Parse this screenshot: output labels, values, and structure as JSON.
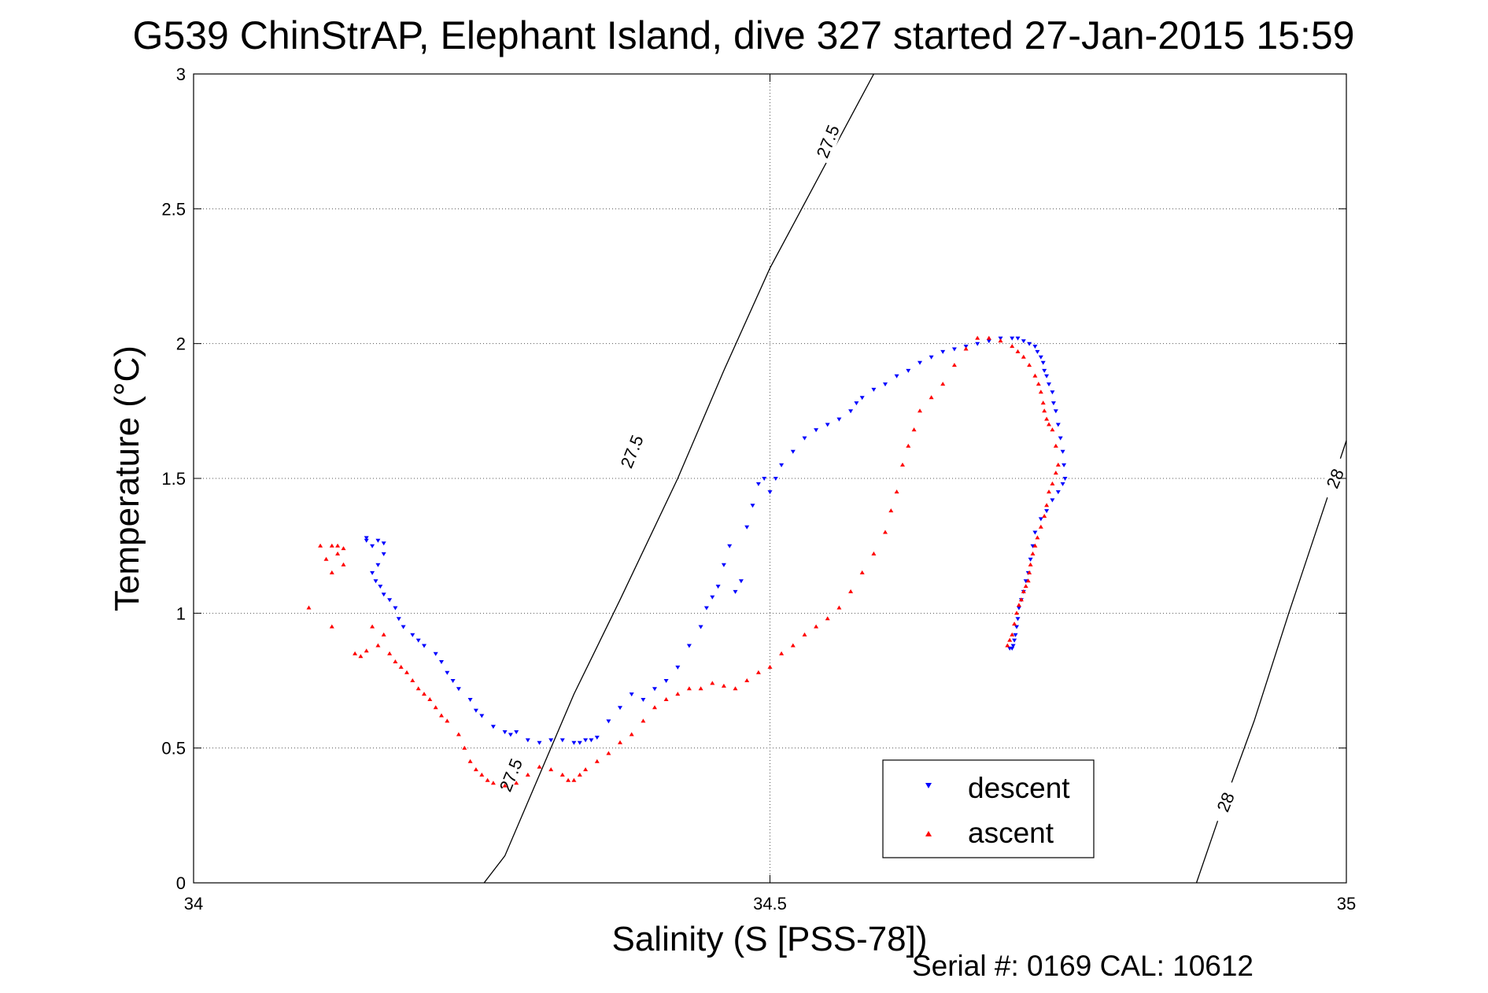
{
  "chart_data": {
    "type": "scatter",
    "title": "G539 ChinStrAP, Elephant Island, dive 327 started 27-Jan-2015 15:59",
    "xlabel": "Salinity (S [PSS-78])",
    "ylabel": "Temperature (°C)",
    "footer": "Serial #: 0169 CAL: 10612",
    "xlim": [
      34,
      35
    ],
    "ylim": [
      0,
      3
    ],
    "xticks": [
      34,
      34.5,
      35
    ],
    "xtick_labels": [
      "34",
      "34.5",
      "35"
    ],
    "yticks": [
      0,
      0.5,
      1,
      1.5,
      2,
      2.5,
      3
    ],
    "ytick_labels": [
      "0",
      "0.5",
      "1",
      "1.5",
      "2",
      "2.5",
      "3"
    ],
    "grid": true,
    "legend_position": "lower-right",
    "isopycnals": [
      {
        "label": "27.5",
        "points": [
          [
            34.252,
            0
          ],
          [
            34.27,
            0.1
          ],
          [
            34.3,
            0.4
          ],
          [
            34.33,
            0.7
          ],
          [
            34.37,
            1.05
          ],
          [
            34.42,
            1.5
          ],
          [
            34.46,
            1.9
          ],
          [
            34.5,
            2.28
          ],
          [
            34.54,
            2.6
          ],
          [
            34.58,
            2.92
          ],
          [
            34.59,
            3.0
          ]
        ]
      },
      {
        "label": "28",
        "points": [
          [
            34.87,
            0
          ],
          [
            34.89,
            0.25
          ],
          [
            34.92,
            0.6
          ],
          [
            34.95,
            1.0
          ],
          [
            35.0,
            1.64
          ]
        ]
      }
    ],
    "isopycnal_labels": [
      {
        "text": "27.5",
        "x": 34.55,
        "y": 2.75
      },
      {
        "text": "27.5",
        "x": 34.38,
        "y": 1.6
      },
      {
        "text": "27.5",
        "x": 34.275,
        "y": 0.4
      },
      {
        "text": "28",
        "x": 34.99,
        "y": 1.5
      },
      {
        "text": "28",
        "x": 34.895,
        "y": 0.3
      }
    ],
    "series": [
      {
        "name": "descent",
        "color": "#0000ff",
        "marker": "triangle-down",
        "x": [
          34.15,
          34.15,
          34.155,
          34.16,
          34.165,
          34.165,
          34.16,
          34.155,
          34.158,
          34.162,
          34.165,
          34.17,
          34.175,
          34.178,
          34.182,
          34.19,
          34.195,
          34.2,
          34.21,
          34.215,
          34.22,
          34.225,
          34.23,
          34.24,
          34.245,
          34.25,
          34.26,
          34.27,
          34.275,
          34.28,
          34.29,
          34.3,
          34.31,
          34.32,
          34.33,
          34.335,
          34.34,
          34.345,
          34.35,
          34.36,
          34.37,
          34.38,
          34.39,
          34.4,
          34.41,
          34.42,
          34.43,
          34.44,
          34.445,
          34.45,
          34.455,
          34.46,
          34.465,
          34.47,
          34.475,
          34.48,
          34.485,
          34.49,
          34.495,
          34.5,
          34.505,
          34.51,
          34.52,
          34.53,
          34.54,
          34.55,
          34.56,
          34.57,
          34.575,
          34.58,
          34.59,
          34.6,
          34.61,
          34.62,
          34.63,
          34.64,
          34.65,
          34.66,
          34.67,
          34.68,
          34.69,
          34.7,
          34.71,
          34.715,
          34.72,
          34.725,
          34.73,
          34.732,
          34.735,
          34.737,
          34.738,
          34.74,
          34.742,
          34.745,
          34.746,
          34.748,
          34.75,
          34.752,
          34.754,
          34.755,
          34.756,
          34.754,
          34.75,
          34.745,
          34.74,
          34.735,
          34.73,
          34.728,
          34.726,
          34.724,
          34.722,
          34.72,
          34.718,
          34.716,
          34.715,
          34.714,
          34.713,
          34.712,
          34.711,
          34.71,
          34.708
        ],
        "y": [
          1.28,
          1.27,
          1.25,
          1.27,
          1.26,
          1.22,
          1.18,
          1.15,
          1.12,
          1.1,
          1.07,
          1.05,
          1.02,
          0.98,
          0.95,
          0.92,
          0.9,
          0.88,
          0.85,
          0.82,
          0.78,
          0.75,
          0.72,
          0.68,
          0.64,
          0.62,
          0.58,
          0.56,
          0.55,
          0.56,
          0.53,
          0.52,
          0.53,
          0.53,
          0.52,
          0.52,
          0.53,
          0.53,
          0.54,
          0.6,
          0.65,
          0.7,
          0.68,
          0.72,
          0.75,
          0.8,
          0.88,
          0.95,
          1.02,
          1.06,
          1.1,
          1.18,
          1.25,
          1.08,
          1.12,
          1.32,
          1.4,
          1.48,
          1.5,
          1.45,
          1.5,
          1.55,
          1.6,
          1.65,
          1.68,
          1.7,
          1.72,
          1.75,
          1.78,
          1.8,
          1.83,
          1.85,
          1.88,
          1.9,
          1.93,
          1.95,
          1.97,
          1.98,
          1.99,
          2.0,
          2.01,
          2.02,
          2.02,
          2.02,
          2.01,
          2.0,
          1.99,
          1.97,
          1.95,
          1.93,
          1.9,
          1.88,
          1.85,
          1.82,
          1.78,
          1.75,
          1.7,
          1.65,
          1.6,
          1.55,
          1.5,
          1.48,
          1.45,
          1.42,
          1.38,
          1.35,
          1.3,
          1.25,
          1.2,
          1.15,
          1.12,
          1.08,
          1.05,
          1.02,
          0.98,
          0.95,
          0.92,
          0.9,
          0.88,
          0.87,
          0.87
        ]
      },
      {
        "name": "ascent",
        "color": "#ff0000",
        "marker": "triangle-up",
        "x": [
          34.1,
          34.11,
          34.115,
          34.12,
          34.12,
          34.12,
          34.125,
          34.125,
          34.13,
          34.13,
          34.14,
          34.145,
          34.15,
          34.155,
          34.16,
          34.165,
          34.17,
          34.175,
          34.18,
          34.185,
          34.19,
          34.195,
          34.2,
          34.205,
          34.21,
          34.215,
          34.22,
          34.23,
          34.235,
          34.24,
          34.245,
          34.25,
          34.255,
          34.26,
          34.27,
          34.28,
          34.29,
          34.3,
          34.31,
          34.32,
          34.325,
          34.33,
          34.335,
          34.34,
          34.35,
          34.36,
          34.37,
          34.38,
          34.39,
          34.4,
          34.41,
          34.42,
          34.43,
          34.44,
          34.45,
          34.46,
          34.47,
          34.48,
          34.49,
          34.5,
          34.51,
          34.52,
          34.53,
          34.54,
          34.55,
          34.56,
          34.57,
          34.58,
          34.59,
          34.6,
          34.605,
          34.61,
          34.615,
          34.62,
          34.625,
          34.63,
          34.64,
          34.65,
          34.66,
          34.67,
          34.68,
          34.69,
          34.7,
          34.71,
          34.715,
          34.72,
          34.725,
          34.73,
          34.733,
          34.735,
          34.737,
          34.738,
          34.74,
          34.742,
          34.745,
          34.748,
          34.75,
          34.748,
          34.745,
          34.742,
          34.74,
          34.738,
          34.735,
          34.732,
          34.73,
          34.728,
          34.726,
          34.725,
          34.724,
          34.722,
          34.72,
          34.718,
          34.716,
          34.714,
          34.712,
          34.71,
          34.708,
          34.706
        ],
        "y": [
          1.02,
          1.25,
          1.2,
          1.15,
          1.25,
          0.95,
          1.22,
          1.25,
          1.24,
          1.18,
          0.85,
          0.84,
          0.86,
          0.95,
          0.88,
          0.92,
          0.85,
          0.82,
          0.8,
          0.78,
          0.75,
          0.72,
          0.7,
          0.68,
          0.65,
          0.62,
          0.6,
          0.55,
          0.5,
          0.45,
          0.42,
          0.4,
          0.38,
          0.37,
          0.36,
          0.37,
          0.4,
          0.43,
          0.42,
          0.4,
          0.38,
          0.38,
          0.4,
          0.42,
          0.45,
          0.48,
          0.52,
          0.55,
          0.6,
          0.65,
          0.68,
          0.7,
          0.72,
          0.72,
          0.74,
          0.73,
          0.72,
          0.75,
          0.78,
          0.8,
          0.85,
          0.88,
          0.92,
          0.95,
          0.98,
          1.02,
          1.08,
          1.15,
          1.22,
          1.3,
          1.38,
          1.45,
          1.55,
          1.62,
          1.68,
          1.75,
          1.8,
          1.85,
          1.92,
          1.98,
          2.02,
          2.02,
          2.01,
          1.99,
          1.97,
          1.95,
          1.92,
          1.88,
          1.85,
          1.82,
          1.78,
          1.75,
          1.72,
          1.7,
          1.68,
          1.62,
          1.55,
          1.52,
          1.48,
          1.45,
          1.4,
          1.36,
          1.32,
          1.28,
          1.25,
          1.22,
          1.18,
          1.15,
          1.12,
          1.1,
          1.08,
          1.05,
          1.03,
          1.0,
          0.96,
          0.92,
          0.9,
          0.88
        ]
      }
    ]
  }
}
